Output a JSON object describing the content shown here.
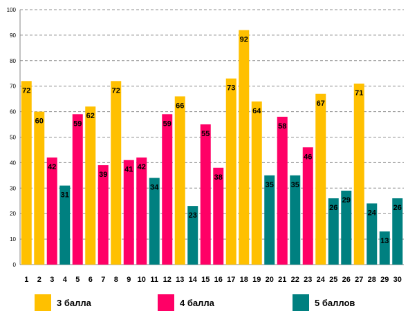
{
  "chart_data": {
    "type": "bar",
    "categories": [
      "1",
      "2",
      "3",
      "4",
      "5",
      "6",
      "7",
      "8",
      "9",
      "10",
      "11",
      "12",
      "13",
      "14",
      "15",
      "16",
      "17",
      "18",
      "19",
      "20",
      "21",
      "22",
      "23",
      "24",
      "25",
      "26",
      "27",
      "28",
      "29",
      "30"
    ],
    "values": [
      72,
      60,
      42,
      31,
      59,
      62,
      39,
      72,
      41,
      42,
      34,
      59,
      66,
      23,
      55,
      38,
      73,
      92,
      64,
      35,
      58,
      35,
      46,
      67,
      26,
      29,
      71,
      24,
      13,
      26
    ],
    "groups": [
      3,
      3,
      4,
      5,
      4,
      3,
      4,
      3,
      4,
      4,
      5,
      4,
      3,
      5,
      4,
      4,
      3,
      3,
      3,
      5,
      4,
      5,
      4,
      3,
      5,
      5,
      3,
      5,
      5,
      5
    ],
    "ylim": [
      0,
      100
    ],
    "yticks": [
      0,
      10,
      20,
      30,
      40,
      50,
      60,
      70,
      80,
      90,
      100
    ],
    "grid": true,
    "legend_position": "bottom",
    "legend": [
      {
        "key": 3,
        "label": "3 балла",
        "color": "#FFC000"
      },
      {
        "key": 4,
        "label": "4 балла",
        "color": "#FF0066"
      },
      {
        "key": 5,
        "label": "5 баллов",
        "color": "#008080"
      }
    ]
  }
}
